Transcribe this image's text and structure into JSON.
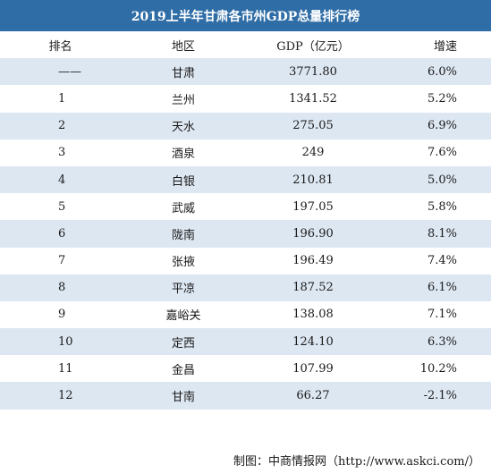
{
  "chart_data": {
    "type": "table",
    "title": "2019上半年甘肃各市州GDP总量排行榜",
    "columns": [
      "排名",
      "地区",
      "GDP（亿元）",
      "增速"
    ],
    "rows": [
      [
        "——",
        "甘肃",
        "3771.80",
        "6.0%"
      ],
      [
        "1",
        "兰州",
        "1341.52",
        "5.2%"
      ],
      [
        "2",
        "天水",
        "275.05",
        "6.9%"
      ],
      [
        "3",
        "酒泉",
        "249",
        "7.6%"
      ],
      [
        "4",
        "白银",
        "210.81",
        "5.0%"
      ],
      [
        "5",
        "武威",
        "197.05",
        "5.8%"
      ],
      [
        "6",
        "陇南",
        "196.90",
        "8.1%"
      ],
      [
        "7",
        "张掖",
        "196.49",
        "7.4%"
      ],
      [
        "8",
        "平凉",
        "187.52",
        "6.1%"
      ],
      [
        "9",
        "嘉峪关",
        "138.08",
        "7.1%"
      ],
      [
        "10",
        "定西",
        "124.10",
        "6.3%"
      ],
      [
        "11",
        "金昌",
        "107.99",
        "10.2%"
      ],
      [
        "12",
        "甘南",
        "66.27",
        "-2.1%"
      ]
    ]
  },
  "source": "制图：中商情报网（http://www.askci.com/）",
  "colors": {
    "header_bg": "#2f6da6",
    "stripe": "#dde7f2"
  }
}
